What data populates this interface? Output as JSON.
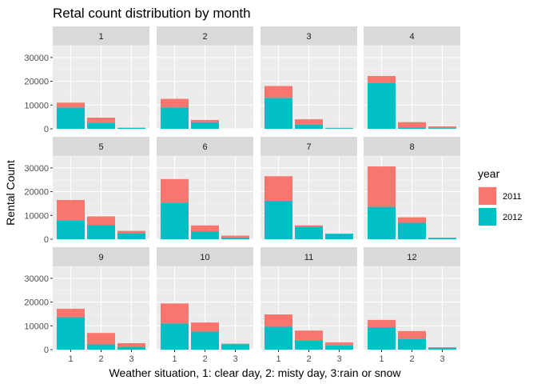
{
  "chart_data": {
    "type": "bar",
    "stacked": true,
    "faceted": true,
    "title": "Retal count distribution by month",
    "xlabel": "Weather situation, 1: clear day, 2: misty day, 3:rain or snow",
    "ylabel": "Rental Count",
    "ylim": [
      0,
      35000
    ],
    "y_ticks": [
      0,
      10000,
      20000,
      30000
    ],
    "categories": [
      "1",
      "2",
      "3"
    ],
    "legend": {
      "title": "year",
      "position": "right"
    },
    "series": [
      {
        "name": "2011",
        "color": "#F8766D"
      },
      {
        "name": "2012",
        "color": "#00BFC4"
      }
    ],
    "facets": [
      {
        "label": "1",
        "values_2011": [
          2000,
          2100,
          100
        ],
        "values_2012": [
          9000,
          2600,
          400
        ]
      },
      {
        "label": "2",
        "values_2011": [
          3600,
          900,
          0
        ],
        "values_2012": [
          9000,
          2800,
          0
        ]
      },
      {
        "label": "3",
        "values_2011": [
          5000,
          2200,
          100
        ],
        "values_2012": [
          13000,
          1800,
          300
        ]
      },
      {
        "label": "4",
        "values_2011": [
          3000,
          2300,
          700
        ],
        "values_2012": [
          19200,
          500,
          300
        ]
      },
      {
        "label": "5",
        "values_2011": [
          8500,
          3700,
          1000
        ],
        "values_2012": [
          8000,
          5900,
          2500
        ]
      },
      {
        "label": "6",
        "values_2011": [
          9900,
          2600,
          800
        ],
        "values_2012": [
          15400,
          3200,
          700
        ]
      },
      {
        "label": "7",
        "values_2011": [
          10300,
          600,
          0
        ],
        "values_2012": [
          16200,
          5200,
          2300
        ]
      },
      {
        "label": "8",
        "values_2011": [
          17000,
          2300,
          0
        ],
        "values_2012": [
          13600,
          6900,
          600
        ]
      },
      {
        "label": "9",
        "values_2011": [
          3600,
          4800,
          1700
        ],
        "values_2012": [
          13600,
          2200,
          1000
        ]
      },
      {
        "label": "10",
        "values_2011": [
          8400,
          3800,
          200
        ],
        "values_2012": [
          11000,
          7600,
          2300
        ]
      },
      {
        "label": "11",
        "values_2011": [
          5200,
          4300,
          1200
        ],
        "values_2012": [
          9600,
          3700,
          1800
        ]
      },
      {
        "label": "12",
        "values_2011": [
          3100,
          3200,
          200
        ],
        "values_2012": [
          9400,
          4600,
          800
        ]
      }
    ]
  }
}
